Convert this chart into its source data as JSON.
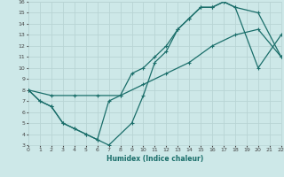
{
  "xlabel": "Humidex (Indice chaleur)",
  "xlim": [
    0,
    22
  ],
  "ylim": [
    3,
    16
  ],
  "xticks": [
    0,
    1,
    2,
    3,
    4,
    5,
    6,
    7,
    8,
    9,
    10,
    11,
    12,
    13,
    14,
    15,
    16,
    17,
    18,
    19,
    20,
    21,
    22
  ],
  "yticks": [
    3,
    4,
    5,
    6,
    7,
    8,
    9,
    10,
    11,
    12,
    13,
    14,
    15,
    16
  ],
  "bg_color": "#cde8e8",
  "grid_color": "#b8d4d4",
  "line_color": "#1a6e6a",
  "line1_x": [
    0,
    1,
    2,
    3,
    4,
    5,
    6,
    7,
    9,
    10,
    11,
    12,
    13,
    14,
    15,
    16,
    17,
    18,
    20,
    22
  ],
  "line1_y": [
    8,
    7,
    6.5,
    5,
    4.5,
    4,
    3.5,
    3,
    5,
    7.5,
    10.5,
    11.5,
    13.5,
    14.5,
    15.5,
    15.5,
    16,
    15.5,
    15,
    11
  ],
  "line2_x": [
    0,
    1,
    2,
    3,
    4,
    5,
    6,
    7,
    8,
    9,
    10,
    11,
    12,
    13,
    14,
    15,
    16,
    17,
    18,
    20,
    22
  ],
  "line2_y": [
    8,
    7,
    6.5,
    5,
    4.5,
    4,
    3.5,
    7,
    7.5,
    9.5,
    10,
    11,
    12,
    13.5,
    14.5,
    15.5,
    15.5,
    16,
    15.5,
    10,
    13
  ],
  "line3_x": [
    0,
    2,
    4,
    6,
    8,
    10,
    12,
    14,
    16,
    18,
    20,
    22
  ],
  "line3_y": [
    8,
    7.5,
    7.5,
    7.5,
    7.5,
    8.5,
    9.5,
    10.5,
    12,
    13,
    13.5,
    11
  ]
}
